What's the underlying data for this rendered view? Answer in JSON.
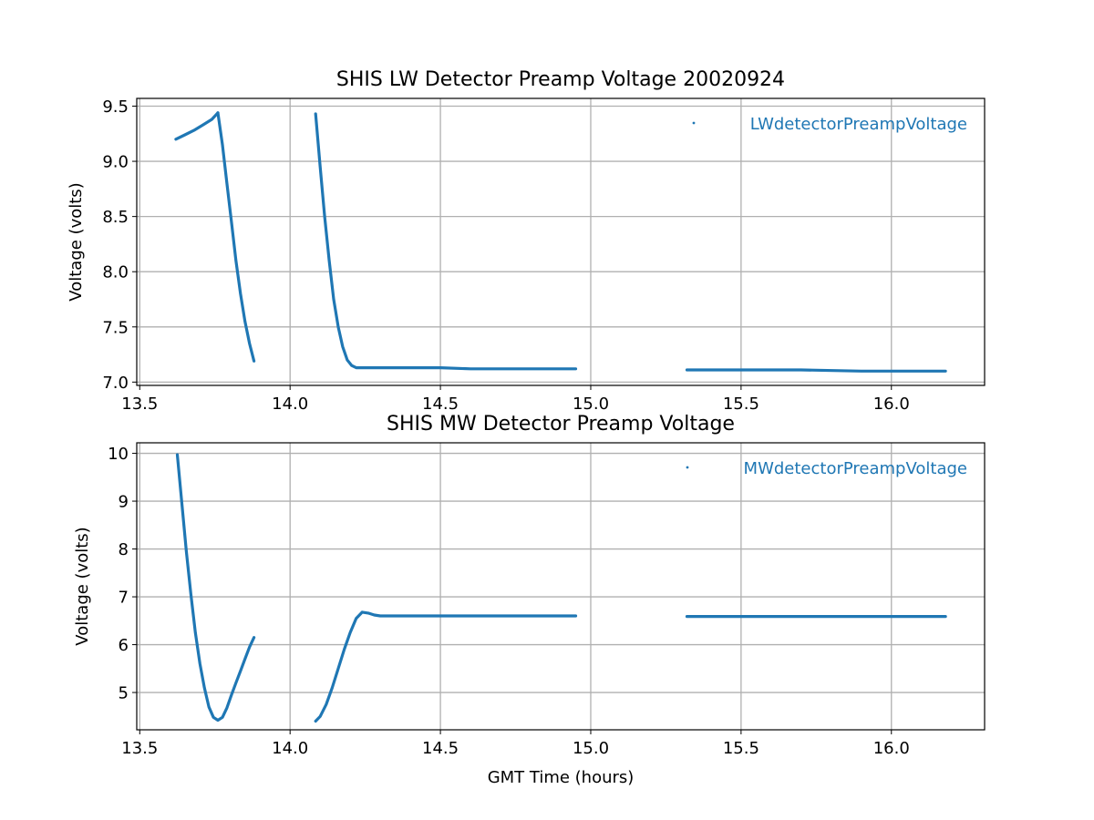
{
  "figure": {
    "series_color": "#1f77b4",
    "grid_color": "#b0b0b0",
    "xlabel": "GMT Time (hours)"
  },
  "chart_data": [
    {
      "type": "scatter",
      "title": "SHIS LW Detector Preamp Voltage 20020924",
      "xlabel": "",
      "ylabel": "Voltage (volts)",
      "xlim": [
        13.49,
        16.31
      ],
      "ylim": [
        6.97,
        9.57
      ],
      "xticks": [
        "13.5",
        "14.0",
        "14.5",
        "15.0",
        "15.5",
        "16.0"
      ],
      "yticks": [
        "7.0",
        "7.5",
        "8.0",
        "8.5",
        "9.0",
        "9.5"
      ],
      "grid": true,
      "legend_position": "upper right",
      "series": [
        {
          "name": "LWdetectorPreampVoltage",
          "segments": [
            {
              "x": [
                13.62,
                13.65,
                13.68,
                13.71,
                13.74,
                13.76
              ],
              "y": [
                9.2,
                9.24,
                9.28,
                9.33,
                9.38,
                9.44
              ]
            },
            {
              "x": [
                13.76,
                13.775,
                13.79,
                13.805,
                13.82,
                13.835,
                13.85,
                13.865,
                13.88
              ],
              "y": [
                9.44,
                9.15,
                8.8,
                8.45,
                8.1,
                7.8,
                7.55,
                7.35,
                7.19
              ]
            },
            {
              "x": [
                14.085,
                14.1,
                14.115,
                14.13,
                14.145,
                14.16,
                14.175,
                14.19,
                14.205,
                14.22,
                14.25,
                14.3,
                14.4,
                14.5,
                14.6,
                14.7,
                14.8,
                14.9,
                14.95
              ],
              "y": [
                9.43,
                8.95,
                8.5,
                8.1,
                7.75,
                7.5,
                7.32,
                7.2,
                7.15,
                7.13,
                7.13,
                7.13,
                7.13,
                7.13,
                7.12,
                7.12,
                7.12,
                7.12,
                7.12
              ]
            },
            {
              "x": [
                15.32,
                15.5,
                15.7,
                15.9,
                16.1,
                16.18
              ],
              "y": [
                7.11,
                7.11,
                7.11,
                7.1,
                7.1,
                7.1
              ]
            }
          ]
        }
      ]
    },
    {
      "type": "scatter",
      "title": "SHIS MW Detector Preamp Voltage",
      "xlabel": "GMT Time (hours)",
      "ylabel": "Voltage (volts)",
      "xlim": [
        13.49,
        16.31
      ],
      "ylim": [
        4.22,
        10.22
      ],
      "xticks": [
        "13.5",
        "14.0",
        "14.5",
        "15.0",
        "15.5",
        "16.0"
      ],
      "yticks": [
        "5",
        "6",
        "7",
        "8",
        "9",
        "10"
      ],
      "grid": true,
      "legend_position": "upper right",
      "series": [
        {
          "name": "MWdetectorPreampVoltage",
          "segments": [
            {
              "x": [
                13.625,
                13.64,
                13.655,
                13.67,
                13.685,
                13.7,
                13.715,
                13.73,
                13.745,
                13.76,
                13.775,
                13.79,
                13.805,
                13.82,
                13.835,
                13.85,
                13.865,
                13.88
              ],
              "y": [
                9.97,
                8.95,
                7.95,
                7.05,
                6.25,
                5.6,
                5.1,
                4.7,
                4.48,
                4.42,
                4.48,
                4.68,
                4.95,
                5.2,
                5.45,
                5.7,
                5.95,
                6.15
              ]
            },
            {
              "x": [
                14.085,
                14.1,
                14.12,
                14.14,
                14.16,
                14.18,
                14.2,
                14.22,
                14.24,
                14.26,
                14.28,
                14.3,
                14.5,
                14.7,
                14.95
              ],
              "y": [
                4.4,
                4.5,
                4.75,
                5.1,
                5.5,
                5.9,
                6.25,
                6.55,
                6.68,
                6.66,
                6.62,
                6.6,
                6.6,
                6.6,
                6.6
              ]
            },
            {
              "x": [
                15.32,
                15.5,
                15.7,
                15.9,
                16.1,
                16.18
              ],
              "y": [
                6.59,
                6.59,
                6.59,
                6.59,
                6.59,
                6.59
              ]
            }
          ]
        }
      ]
    }
  ]
}
